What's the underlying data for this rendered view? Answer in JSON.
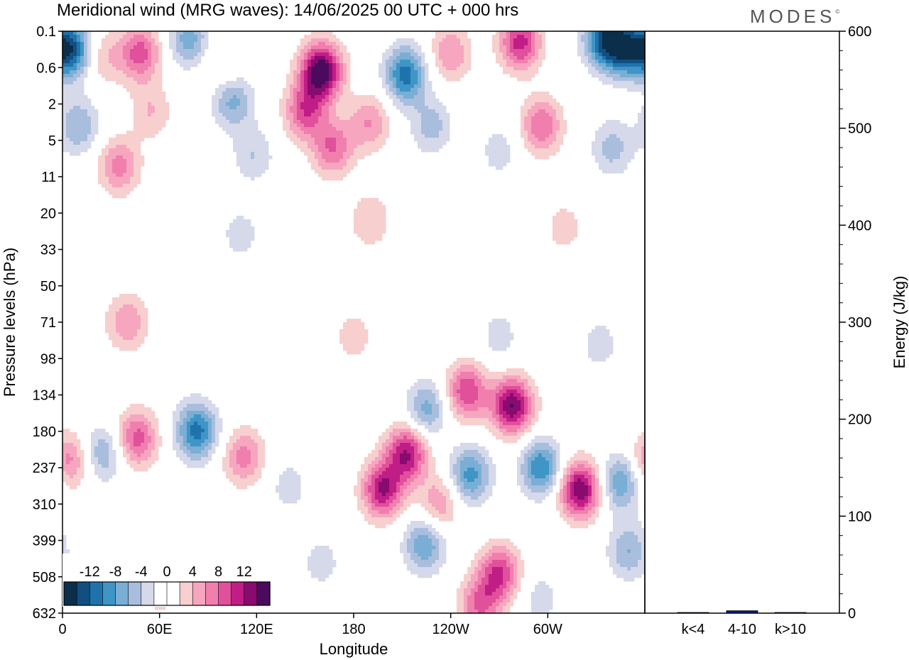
{
  "title": "Meridional wind (MRG waves):  14/06/2025  00 UTC  + 000 hrs",
  "brand": "MODES",
  "brand_mark": "©",
  "colors": {
    "levels": [
      "#0b2e4a",
      "#114f80",
      "#1f73ad",
      "#3f95c6",
      "#7aaed4",
      "#a9bedd",
      "#d5d9ea",
      "#ffffff",
      "#ffffff",
      "#f7cfcf",
      "#f7a6bf",
      "#f07fae",
      "#e0509b",
      "#c01d87",
      "#8a0b6f",
      "#4a0a5e"
    ]
  },
  "chart_data": [
    {
      "type": "heatmap",
      "title": "Meridional wind (MRG waves):  14/06/2025  00 UTC  + 000 hrs",
      "xlabel": "Longitude",
      "ylabel": "Pressure levels (hPa)",
      "x_ticks": [
        "0",
        "60E",
        "120E",
        "180",
        "120W",
        "60W"
      ],
      "x_tick_degrees": [
        0,
        60,
        120,
        180,
        240,
        300
      ],
      "xlim": [
        0,
        360
      ],
      "y_ticks": [
        "0.1",
        "0.6",
        "2",
        "5",
        "11",
        "20",
        "33",
        "50",
        "71",
        "98",
        "134",
        "180",
        "237",
        "310",
        "399",
        "508",
        "632"
      ],
      "colorbar_labels": [
        "-12",
        "-8",
        "-4",
        "0",
        "4",
        "8",
        "12"
      ],
      "colorbar_bins": 16,
      "blobs": [
        {
          "lon": 5,
          "lev": 0.5,
          "v": -13
        },
        {
          "lon": 25,
          "lev": 0.7,
          "v": 4
        },
        {
          "lon": 48,
          "lev": 0.6,
          "v": 9
        },
        {
          "lon": 78,
          "lev": 0.2,
          "v": -7
        },
        {
          "lon": 100,
          "lev": 1.0,
          "v": 3
        },
        {
          "lon": 105,
          "lev": 1.9,
          "v": -7
        },
        {
          "lon": 160,
          "lev": 1.1,
          "v": 16
        },
        {
          "lon": 150,
          "lev": 2.2,
          "v": 9
        },
        {
          "lon": 167,
          "lev": 3.2,
          "v": 8
        },
        {
          "lon": 190,
          "lev": 2.5,
          "v": 6
        },
        {
          "lon": 212,
          "lev": 1.2,
          "v": -11
        },
        {
          "lon": 228,
          "lev": 2.6,
          "v": -5
        },
        {
          "lon": 240,
          "lev": 0.6,
          "v": 6
        },
        {
          "lon": 283,
          "lev": 0.3,
          "v": 11
        },
        {
          "lon": 296,
          "lev": 2.6,
          "v": 8
        },
        {
          "lon": 335,
          "lev": 0.2,
          "v": -12
        },
        {
          "lon": 348,
          "lev": 0.5,
          "v": -11
        },
        {
          "lon": 10,
          "lev": 2.6,
          "v": -6
        },
        {
          "lon": 35,
          "lev": 3.7,
          "v": 7
        },
        {
          "lon": 55,
          "lev": 2.2,
          "v": 4
        },
        {
          "lon": 118,
          "lev": 3.4,
          "v": -4
        },
        {
          "lon": 340,
          "lev": 3.2,
          "v": -5
        },
        {
          "lon": 270,
          "lev": 3.3,
          "v": -3
        },
        {
          "lon": 190,
          "lev": 5.2,
          "v": 4
        },
        {
          "lon": 310,
          "lev": 5.4,
          "v": 3
        },
        {
          "lon": 110,
          "lev": 5.6,
          "v": -3
        },
        {
          "lon": 40,
          "lev": 8.0,
          "v": 6
        },
        {
          "lon": 180,
          "lev": 8.4,
          "v": 3
        },
        {
          "lon": 270,
          "lev": 8.4,
          "v": -3
        },
        {
          "lon": 332,
          "lev": 8.6,
          "v": -3
        },
        {
          "lon": 250,
          "lev": 9.9,
          "v": 10
        },
        {
          "lon": 278,
          "lev": 10.3,
          "v": 14
        },
        {
          "lon": 225,
          "lev": 10.4,
          "v": -7
        },
        {
          "lon": 4,
          "lev": 11.8,
          "v": 7
        },
        {
          "lon": 25,
          "lev": 11.6,
          "v": -6
        },
        {
          "lon": 46,
          "lev": 11.2,
          "v": 9
        },
        {
          "lon": 83,
          "lev": 11.0,
          "v": -11
        },
        {
          "lon": 112,
          "lev": 11.7,
          "v": 7
        },
        {
          "lon": 140,
          "lev": 12.5,
          "v": -3
        },
        {
          "lon": 198,
          "lev": 12.6,
          "v": 12
        },
        {
          "lon": 213,
          "lev": 11.6,
          "v": 12
        },
        {
          "lon": 233,
          "lev": 13.0,
          "v": 6
        },
        {
          "lon": 252,
          "lev": 12.2,
          "v": -9
        },
        {
          "lon": 224,
          "lev": 14.1,
          "v": -8
        },
        {
          "lon": 270,
          "lev": 14.9,
          "v": 10
        },
        {
          "lon": 258,
          "lev": 15.8,
          "v": 8
        },
        {
          "lon": 296,
          "lev": 12.0,
          "v": -10
        },
        {
          "lon": 320,
          "lev": 12.6,
          "v": 14
        },
        {
          "lon": 345,
          "lev": 12.4,
          "v": -8
        },
        {
          "lon": 350,
          "lev": 14.3,
          "v": -6
        },
        {
          "lon": 60,
          "lev": 15.4,
          "v": 3
        },
        {
          "lon": 160,
          "lev": 14.6,
          "v": -3
        },
        {
          "lon": 295,
          "lev": 15.6,
          "v": -3
        }
      ]
    },
    {
      "type": "bar",
      "categories": [
        "k<4",
        "4-10",
        "k>10"
      ],
      "values": [
        0.5,
        2.5,
        0.2
      ],
      "ylabel": "Energy (J/kg)",
      "ylim": [
        0,
        600
      ],
      "y_ticks": [
        "0",
        "100",
        "200",
        "300",
        "400",
        "500",
        "600"
      ],
      "y_tick_values": [
        0,
        100,
        200,
        300,
        400,
        500,
        600
      ],
      "bar_color": "#0a1a8a"
    }
  ]
}
